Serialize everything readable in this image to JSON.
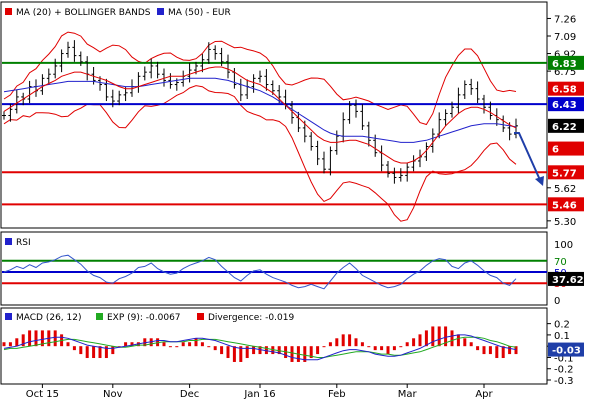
{
  "colors": {
    "price": "#000000",
    "ma20": "#e00000",
    "ma50": "#2222cc",
    "level_green": "#008000",
    "level_blue": "#0000cc",
    "level_red": "#e00000",
    "rsi": "#3355cc",
    "macd": "#2222cc",
    "signal": "#22aa22",
    "divergence": "#e00000",
    "badge_dark": "#000000",
    "badge_blue": "#1f3ea8"
  },
  "chart_data": [
    {
      "type": "candlestick",
      "title": "MA (20) + BOLLINGER BANDS",
      "series": [
        {
          "name": "MA (20) + BOLLINGER BANDS",
          "icon": "red-square-icon"
        },
        {
          "name": "MA (50) - EUR",
          "icon": "blue-square-icon"
        }
      ],
      "y_ticks": [
        "7.26",
        "7.09",
        "6.92",
        "6.75",
        "5.62",
        "5.30"
      ],
      "ylim": [
        5.25,
        7.4
      ],
      "levels": [
        {
          "label": "6.83",
          "value": 6.83,
          "color": "green"
        },
        {
          "label": "6.43",
          "value": 6.43,
          "color": "blue"
        },
        {
          "label": "5.77",
          "value": 5.77,
          "color": "red"
        },
        {
          "label": "5.46",
          "value": 5.46,
          "color": "red"
        }
      ],
      "badges": [
        {
          "label": "6.58",
          "value": 6.58,
          "color": "red"
        },
        {
          "label": "6.22",
          "value": 6.22,
          "color": "dark"
        },
        {
          "label": "6",
          "value": 6.0,
          "color": "red"
        }
      ],
      "close": [
        6.32,
        6.38,
        6.5,
        6.48,
        6.6,
        6.56,
        6.68,
        6.72,
        6.8,
        6.92,
        6.98,
        6.9,
        6.84,
        6.72,
        6.66,
        6.62,
        6.5,
        6.46,
        6.52,
        6.54,
        6.6,
        6.7,
        6.74,
        6.8,
        6.72,
        6.66,
        6.62,
        6.64,
        6.7,
        6.76,
        6.8,
        6.86,
        6.96,
        6.92,
        6.84,
        6.74,
        6.62,
        6.52,
        6.6,
        6.68,
        6.7,
        6.62,
        6.56,
        6.5,
        6.42,
        6.3,
        6.2,
        6.12,
        6.02,
        5.9,
        5.8,
        5.98,
        6.12,
        6.28,
        6.42,
        6.36,
        6.22,
        6.08,
        5.96,
        5.84,
        5.76,
        5.72,
        5.74,
        5.82,
        5.88,
        5.92,
        6.02,
        6.14,
        6.28,
        6.34,
        6.4,
        6.52,
        6.62,
        6.58,
        6.48,
        6.4,
        6.32,
        6.28,
        6.2,
        6.14,
        6.22
      ],
      "ma20": [
        6.36,
        6.4,
        6.44,
        6.48,
        6.52,
        6.56,
        6.6,
        6.63,
        6.66,
        6.7,
        6.72,
        6.74,
        6.74,
        6.72,
        6.7,
        6.68,
        6.66,
        6.63,
        6.6,
        6.58,
        6.58,
        6.6,
        6.62,
        6.64,
        6.66,
        6.68,
        6.7,
        6.7,
        6.7,
        6.72,
        6.74,
        6.76,
        6.78,
        6.79,
        6.79,
        6.77,
        6.74,
        6.7,
        6.66,
        6.64,
        6.62,
        6.58,
        6.54,
        6.48,
        6.42,
        6.36,
        6.3,
        6.24,
        6.18,
        6.12,
        6.08,
        6.06,
        6.06,
        6.07,
        6.08,
        6.08,
        6.06,
        6.04,
        6.0,
        5.96,
        5.92,
        5.88,
        5.86,
        5.86,
        5.88,
        5.92,
        5.98,
        6.06,
        6.14,
        6.22,
        6.28,
        6.34,
        6.38,
        6.4,
        6.4,
        6.38,
        6.35,
        6.31,
        6.27,
        6.23,
        6.2
      ],
      "ma50": [
        6.55,
        6.56,
        6.57,
        6.58,
        6.59,
        6.6,
        6.61,
        6.62,
        6.63,
        6.64,
        6.65,
        6.65,
        6.65,
        6.65,
        6.65,
        6.64,
        6.63,
        6.62,
        6.61,
        6.6,
        6.6,
        6.6,
        6.61,
        6.62,
        6.63,
        6.64,
        6.65,
        6.66,
        6.67,
        6.68,
        6.68,
        6.68,
        6.68,
        6.68,
        6.67,
        6.66,
        6.64,
        6.62,
        6.6,
        6.58,
        6.56,
        6.53,
        6.5,
        6.46,
        6.42,
        6.38,
        6.34,
        6.3,
        6.26,
        6.22,
        6.18,
        6.15,
        6.13,
        6.12,
        6.12,
        6.12,
        6.12,
        6.11,
        6.1,
        6.09,
        6.08,
        6.07,
        6.06,
        6.06,
        6.06,
        6.07,
        6.08,
        6.1,
        6.12,
        6.14,
        6.16,
        6.18,
        6.2,
        6.22,
        6.23,
        6.24,
        6.24,
        6.24,
        6.23,
        6.22,
        6.21
      ],
      "x_ticks": [
        {
          "label": "Oct 15",
          "index": 6
        },
        {
          "label": "Nov",
          "index": 17
        },
        {
          "label": "Dec",
          "index": 29
        },
        {
          "label": "Jan 16",
          "index": 40
        },
        {
          "label": "Feb",
          "index": 52
        },
        {
          "label": "Mar",
          "index": 63
        },
        {
          "label": "Apr",
          "index": 75
        }
      ]
    },
    {
      "type": "line",
      "title": "RSI",
      "ylim": [
        0,
        100
      ],
      "y_ticks": [
        "100",
        "70",
        "50",
        "30",
        "0"
      ],
      "levels": [
        {
          "value": 70,
          "color": "green"
        },
        {
          "value": 50,
          "color": "blue"
        },
        {
          "value": 30,
          "color": "red"
        }
      ],
      "badge": "37.62",
      "values": [
        50,
        54,
        60,
        56,
        63,
        58,
        66,
        68,
        72,
        78,
        80,
        72,
        64,
        52,
        44,
        40,
        32,
        30,
        38,
        42,
        48,
        58,
        60,
        66,
        56,
        50,
        46,
        48,
        56,
        62,
        66,
        70,
        76,
        72,
        60,
        50,
        40,
        34,
        44,
        52,
        54,
        46,
        40,
        36,
        32,
        26,
        22,
        24,
        28,
        24,
        20,
        34,
        48,
        58,
        66,
        56,
        44,
        38,
        32,
        26,
        22,
        24,
        28,
        38,
        46,
        52,
        62,
        70,
        74,
        72,
        60,
        56,
        66,
        70,
        62,
        52,
        44,
        40,
        30,
        26,
        38
      ]
    },
    {
      "type": "bar",
      "title": "MACD (26, 12)",
      "series": [
        {
          "name": "MACD (26, 12)",
          "icon": "blue-square-icon"
        },
        {
          "name": "EXP (9): -0.0067",
          "icon": "green-square-icon"
        },
        {
          "name": "Divergence: -0.019",
          "icon": "red-square-icon"
        }
      ],
      "ylim": [
        -0.3,
        0.25
      ],
      "y_ticks": [
        "0.2",
        "0.1",
        "0",
        "-0.1",
        "-0.2",
        "-0.3"
      ],
      "badge": "-0.03",
      "macd": [
        -0.02,
        -0.01,
        0.0,
        0.02,
        0.04,
        0.05,
        0.06,
        0.07,
        0.08,
        0.08,
        0.07,
        0.05,
        0.03,
        0.01,
        0.0,
        -0.01,
        -0.02,
        -0.02,
        -0.01,
        0.0,
        0.01,
        0.02,
        0.03,
        0.04,
        0.05,
        0.05,
        0.04,
        0.04,
        0.05,
        0.06,
        0.07,
        0.07,
        0.06,
        0.05,
        0.03,
        0.01,
        -0.01,
        -0.02,
        -0.02,
        -0.02,
        -0.03,
        -0.04,
        -0.05,
        -0.06,
        -0.08,
        -0.1,
        -0.11,
        -0.12,
        -0.12,
        -0.12,
        -0.1,
        -0.08,
        -0.06,
        -0.04,
        -0.03,
        -0.03,
        -0.04,
        -0.05,
        -0.07,
        -0.08,
        -0.09,
        -0.09,
        -0.08,
        -0.06,
        -0.04,
        -0.02,
        0.01,
        0.04,
        0.06,
        0.08,
        0.09,
        0.1,
        0.1,
        0.09,
        0.07,
        0.05,
        0.03,
        0.01,
        -0.01,
        -0.02,
        -0.03
      ],
      "signal": [
        -0.03,
        -0.02,
        -0.02,
        -0.01,
        0.0,
        0.01,
        0.02,
        0.03,
        0.04,
        0.05,
        0.06,
        0.06,
        0.05,
        0.04,
        0.03,
        0.02,
        0.01,
        0.0,
        -0.01,
        -0.01,
        0.0,
        0.01,
        0.01,
        0.02,
        0.03,
        0.04,
        0.04,
        0.04,
        0.04,
        0.05,
        0.05,
        0.06,
        0.06,
        0.06,
        0.05,
        0.04,
        0.03,
        0.02,
        0.01,
        0.0,
        -0.01,
        -0.02,
        -0.03,
        -0.04,
        -0.05,
        -0.06,
        -0.07,
        -0.08,
        -0.09,
        -0.1,
        -0.1,
        -0.09,
        -0.08,
        -0.07,
        -0.06,
        -0.05,
        -0.05,
        -0.05,
        -0.06,
        -0.07,
        -0.07,
        -0.08,
        -0.08,
        -0.07,
        -0.06,
        -0.05,
        -0.03,
        -0.01,
        0.01,
        0.03,
        0.05,
        0.07,
        0.08,
        0.08,
        0.08,
        0.07,
        0.05,
        0.04,
        0.02,
        0.0,
        -0.01
      ],
      "divergence": [
        0.01,
        0.01,
        0.02,
        0.03,
        0.04,
        0.04,
        0.04,
        0.04,
        0.04,
        0.03,
        0.01,
        -0.01,
        -0.02,
        -0.03,
        -0.03,
        -0.03,
        -0.03,
        -0.02,
        0.0,
        0.01,
        0.01,
        0.01,
        0.02,
        0.02,
        0.02,
        0.01,
        0.0,
        0.0,
        0.01,
        0.01,
        0.02,
        0.01,
        0.0,
        -0.01,
        -0.02,
        -0.03,
        -0.04,
        -0.04,
        -0.03,
        -0.02,
        -0.02,
        -0.02,
        -0.02,
        -0.02,
        -0.03,
        -0.04,
        -0.04,
        -0.04,
        -0.03,
        -0.02,
        0.0,
        0.01,
        0.02,
        0.03,
        0.03,
        0.02,
        0.01,
        0.0,
        -0.01,
        -0.01,
        -0.02,
        -0.01,
        0.0,
        0.01,
        0.02,
        0.03,
        0.04,
        0.05,
        0.05,
        0.05,
        0.04,
        0.03,
        0.02,
        0.01,
        -0.01,
        -0.02,
        -0.02,
        -0.03,
        -0.03,
        -0.02,
        -0.02
      ]
    }
  ]
}
